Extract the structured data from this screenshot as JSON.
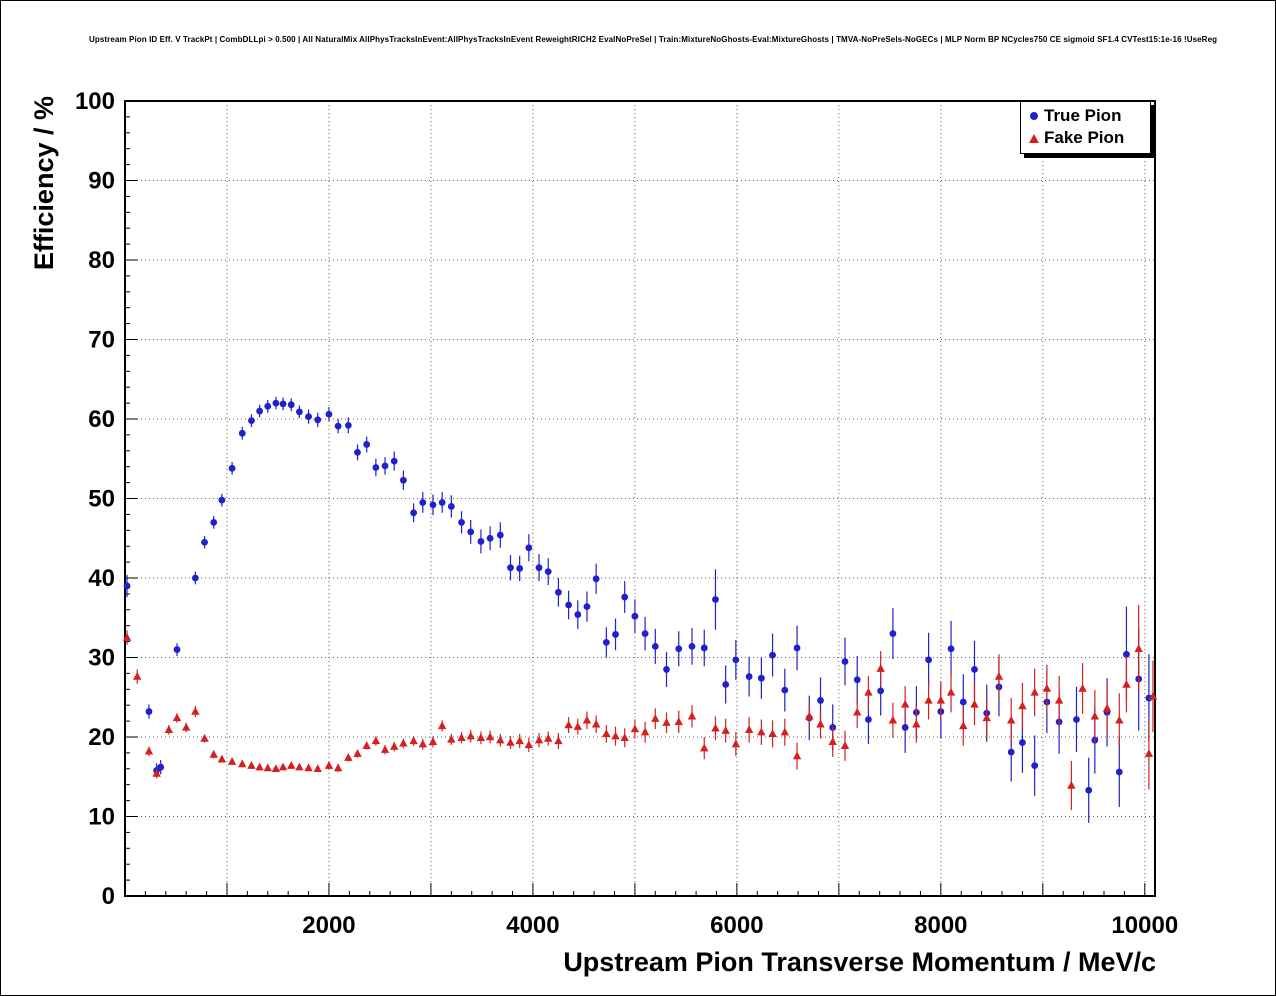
{
  "title": "Upstream Pion ID Eff. V TrackPt | CombDLLpi > 0.500 | All NaturalMix AllPhysTracksInEvent:AllPhysTracksInEvent ReweightRICH2 EvalNoPreSel | Train:MixtureNoGhosts-Eval:MixtureGhosts | TMVA-NoPreSels-NoGECs | MLP Norm BP NCycles750 CE sigmoid SF1.4 CVTest15:1e-16 !UseReg",
  "colors": {
    "true_pion": "#2020cc",
    "fake_pion": "#d42020",
    "grid": "#666666",
    "frame": "#000000"
  },
  "chart_data": {
    "type": "scatter",
    "title": "Upstream Pion ID Eff. V TrackPt | CombDLLpi > 0.500 | All NaturalMix AllPhysTracksInEvent:AllPhysTracksInEvent ReweightRICH2 EvalNoPreSel | Train:MixtureNoGhosts-Eval:MixtureGhosts | TMVA-NoPreSels-NoGECs | MLP Norm BP NCycles750 CE sigmoid SF1.4 CVTest15:1e-16 !UseReg",
    "xlabel": "Upstream Pion Transverse Momentum / MeV/c",
    "ylabel": "Efficiency / %",
    "xlim": [
      0,
      10100
    ],
    "ylim": [
      0,
      100
    ],
    "xticks": [
      2000,
      4000,
      6000,
      8000,
      10000
    ],
    "yticks": [
      0,
      10,
      20,
      30,
      40,
      50,
      60,
      70,
      80,
      90,
      100
    ],
    "grid": true,
    "grid_style": "dotted",
    "grid_x_step": 1000,
    "grid_y_step": 10,
    "legend_position": "top-right",
    "series": [
      {
        "name": "True Pion",
        "marker": "circle",
        "color": "#2020cc",
        "points": [
          [
            20,
            39.0,
            1.4
          ],
          [
            235,
            23.2,
            0.9
          ],
          [
            310,
            15.8,
            0.9
          ],
          [
            350,
            16.2,
            0.9
          ],
          [
            510,
            31.0,
            0.8
          ],
          [
            690,
            40.0,
            0.8
          ],
          [
            780,
            44.5,
            0.8
          ],
          [
            870,
            47.0,
            0.8
          ],
          [
            950,
            49.8,
            0.8
          ],
          [
            1050,
            53.8,
            0.8
          ],
          [
            1150,
            58.2,
            0.8
          ],
          [
            1240,
            59.8,
            0.8
          ],
          [
            1320,
            61.0,
            0.8
          ],
          [
            1400,
            61.6,
            0.8
          ],
          [
            1480,
            62.0,
            0.8
          ],
          [
            1550,
            61.9,
            0.8
          ],
          [
            1630,
            61.8,
            0.8
          ],
          [
            1710,
            60.9,
            0.8
          ],
          [
            1800,
            60.3,
            0.9
          ],
          [
            1890,
            59.9,
            0.9
          ],
          [
            2000,
            60.6,
            0.9
          ],
          [
            2090,
            59.1,
            0.9
          ],
          [
            2190,
            59.2,
            1.0
          ],
          [
            2280,
            55.8,
            1.0
          ],
          [
            2370,
            56.8,
            1.0
          ],
          [
            2460,
            53.9,
            1.1
          ],
          [
            2550,
            54.1,
            1.1
          ],
          [
            2640,
            54.7,
            1.2
          ],
          [
            2730,
            52.3,
            1.2
          ],
          [
            2830,
            48.2,
            1.2
          ],
          [
            2920,
            49.5,
            1.3
          ],
          [
            3020,
            49.2,
            1.3
          ],
          [
            3110,
            49.5,
            1.3
          ],
          [
            3200,
            49.0,
            1.4
          ],
          [
            3300,
            47.0,
            1.4
          ],
          [
            3390,
            45.8,
            1.5
          ],
          [
            3490,
            44.6,
            1.5
          ],
          [
            3580,
            45.0,
            1.5
          ],
          [
            3680,
            45.4,
            1.6
          ],
          [
            3780,
            41.3,
            1.6
          ],
          [
            3870,
            41.2,
            1.6
          ],
          [
            3960,
            43.8,
            1.7
          ],
          [
            4060,
            41.3,
            1.7
          ],
          [
            4150,
            40.8,
            1.7
          ],
          [
            4250,
            38.2,
            1.8
          ],
          [
            4350,
            36.6,
            1.8
          ],
          [
            4440,
            35.4,
            1.8
          ],
          [
            4530,
            36.4,
            1.9
          ],
          [
            4620,
            39.9,
            1.9
          ],
          [
            4720,
            31.9,
            1.9
          ],
          [
            4810,
            32.9,
            2.0
          ],
          [
            4900,
            37.6,
            2.0
          ],
          [
            5000,
            35.2,
            2.1
          ],
          [
            5100,
            33.0,
            2.1
          ],
          [
            5200,
            31.4,
            2.2
          ],
          [
            5310,
            28.5,
            2.2
          ],
          [
            5430,
            31.1,
            2.2
          ],
          [
            5560,
            31.4,
            2.3
          ],
          [
            5680,
            31.2,
            2.3
          ],
          [
            5790,
            37.3,
            3.8
          ],
          [
            5890,
            26.6,
            2.4
          ],
          [
            5990,
            29.7,
            2.5
          ],
          [
            6120,
            27.6,
            2.5
          ],
          [
            6240,
            27.4,
            2.6
          ],
          [
            6350,
            30.3,
            2.7
          ],
          [
            6470,
            25.9,
            2.7
          ],
          [
            6590,
            31.2,
            2.8
          ],
          [
            6710,
            22.4,
            2.8
          ],
          [
            6820,
            24.6,
            2.9
          ],
          [
            6940,
            21.2,
            2.9
          ],
          [
            7060,
            29.5,
            3.0
          ],
          [
            7180,
            27.2,
            3.0
          ],
          [
            7290,
            22.2,
            3.1
          ],
          [
            7410,
            25.8,
            3.1
          ],
          [
            7530,
            33.0,
            3.2
          ],
          [
            7650,
            21.2,
            3.2
          ],
          [
            7760,
            23.1,
            3.3
          ],
          [
            7880,
            29.7,
            3.4
          ],
          [
            8000,
            23.2,
            3.4
          ],
          [
            8100,
            31.1,
            3.5
          ],
          [
            8220,
            24.4,
            3.5
          ],
          [
            8330,
            28.5,
            3.6
          ],
          [
            8450,
            23.0,
            3.6
          ],
          [
            8570,
            26.3,
            3.7
          ],
          [
            8690,
            18.1,
            3.7
          ],
          [
            8800,
            19.3,
            3.8
          ],
          [
            8920,
            16.4,
            3.8
          ],
          [
            9040,
            24.4,
            3.9
          ],
          [
            9160,
            21.9,
            4.0
          ],
          [
            9330,
            22.2,
            4.1
          ],
          [
            9450,
            13.3,
            4.1
          ],
          [
            9510,
            19.6,
            4.2
          ],
          [
            9630,
            23.1,
            4.3
          ],
          [
            9750,
            15.6,
            4.4
          ],
          [
            9820,
            30.4,
            6.0
          ],
          [
            9940,
            27.3,
            6.5
          ],
          [
            10040,
            24.9,
            5.5
          ]
        ]
      },
      {
        "name": "Fake Pion",
        "marker": "triangle",
        "color": "#d42020",
        "points": [
          [
            20,
            32.5,
            0.9
          ],
          [
            120,
            27.6,
            0.9
          ],
          [
            235,
            18.2,
            0.6
          ],
          [
            310,
            15.4,
            0.6
          ],
          [
            430,
            20.9,
            0.6
          ],
          [
            510,
            22.4,
            0.6
          ],
          [
            600,
            21.2,
            0.6
          ],
          [
            690,
            23.2,
            0.7
          ],
          [
            780,
            19.8,
            0.5
          ],
          [
            870,
            17.8,
            0.5
          ],
          [
            950,
            17.2,
            0.4
          ],
          [
            1050,
            16.9,
            0.4
          ],
          [
            1150,
            16.6,
            0.4
          ],
          [
            1240,
            16.4,
            0.4
          ],
          [
            1320,
            16.2,
            0.4
          ],
          [
            1400,
            16.1,
            0.4
          ],
          [
            1480,
            16.0,
            0.4
          ],
          [
            1550,
            16.2,
            0.4
          ],
          [
            1630,
            16.4,
            0.4
          ],
          [
            1710,
            16.2,
            0.4
          ],
          [
            1800,
            16.1,
            0.4
          ],
          [
            1890,
            16.0,
            0.4
          ],
          [
            2000,
            16.4,
            0.5
          ],
          [
            2090,
            16.1,
            0.5
          ],
          [
            2190,
            17.4,
            0.5
          ],
          [
            2280,
            17.9,
            0.5
          ],
          [
            2370,
            18.9,
            0.5
          ],
          [
            2460,
            19.5,
            0.6
          ],
          [
            2550,
            18.4,
            0.6
          ],
          [
            2640,
            18.8,
            0.6
          ],
          [
            2730,
            19.2,
            0.6
          ],
          [
            2830,
            19.5,
            0.6
          ],
          [
            2920,
            19.1,
            0.7
          ],
          [
            3020,
            19.4,
            0.7
          ],
          [
            3110,
            21.4,
            0.7
          ],
          [
            3200,
            19.7,
            0.7
          ],
          [
            3300,
            19.9,
            0.7
          ],
          [
            3390,
            20.1,
            0.8
          ],
          [
            3490,
            19.9,
            0.8
          ],
          [
            3580,
            20.0,
            0.8
          ],
          [
            3680,
            19.6,
            0.8
          ],
          [
            3780,
            19.3,
            0.8
          ],
          [
            3870,
            19.5,
            0.9
          ],
          [
            3960,
            19.0,
            0.9
          ],
          [
            4060,
            19.6,
            0.9
          ],
          [
            4150,
            19.8,
            0.9
          ],
          [
            4250,
            19.5,
            1.0
          ],
          [
            4350,
            21.5,
            1.0
          ],
          [
            4440,
            21.3,
            1.0
          ],
          [
            4530,
            22.1,
            1.1
          ],
          [
            4620,
            21.6,
            1.1
          ],
          [
            4720,
            20.4,
            1.1
          ],
          [
            4810,
            20.1,
            1.2
          ],
          [
            4900,
            19.9,
            1.2
          ],
          [
            5000,
            21.0,
            1.2
          ],
          [
            5100,
            20.6,
            1.3
          ],
          [
            5200,
            22.3,
            1.3
          ],
          [
            5310,
            21.8,
            1.3
          ],
          [
            5430,
            21.9,
            1.4
          ],
          [
            5560,
            22.6,
            1.4
          ],
          [
            5680,
            18.6,
            1.4
          ],
          [
            5790,
            21.1,
            1.5
          ],
          [
            5890,
            20.8,
            1.5
          ],
          [
            5990,
            19.1,
            1.5
          ],
          [
            6120,
            20.9,
            1.6
          ],
          [
            6240,
            20.6,
            1.6
          ],
          [
            6350,
            20.4,
            1.7
          ],
          [
            6470,
            20.6,
            1.7
          ],
          [
            6590,
            17.6,
            1.7
          ],
          [
            6710,
            22.6,
            1.8
          ],
          [
            6820,
            21.6,
            1.8
          ],
          [
            6940,
            19.4,
            1.9
          ],
          [
            7060,
            18.9,
            1.9
          ],
          [
            7180,
            23.1,
            2.0
          ],
          [
            7290,
            25.6,
            2.1
          ],
          [
            7410,
            28.6,
            2.2
          ],
          [
            7530,
            22.1,
            2.2
          ],
          [
            7650,
            24.1,
            2.3
          ],
          [
            7760,
            21.6,
            2.3
          ],
          [
            7880,
            24.6,
            2.4
          ],
          [
            8000,
            24.6,
            2.4
          ],
          [
            8100,
            25.6,
            2.5
          ],
          [
            8220,
            21.4,
            2.5
          ],
          [
            8330,
            24.1,
            2.6
          ],
          [
            8450,
            22.4,
            2.6
          ],
          [
            8570,
            27.6,
            2.8
          ],
          [
            8690,
            22.1,
            2.8
          ],
          [
            8800,
            23.9,
            2.9
          ],
          [
            8920,
            25.6,
            3.0
          ],
          [
            9040,
            26.1,
            3.0
          ],
          [
            9160,
            24.6,
            3.1
          ],
          [
            9280,
            13.9,
            3.1
          ],
          [
            9390,
            26.1,
            3.2
          ],
          [
            9510,
            22.6,
            3.3
          ],
          [
            9630,
            23.6,
            3.4
          ],
          [
            9750,
            22.1,
            3.4
          ],
          [
            9820,
            26.6,
            3.5
          ],
          [
            9940,
            31.1,
            5.5
          ],
          [
            10040,
            17.9,
            4.5
          ],
          [
            10080,
            25.1,
            4.5
          ]
        ]
      }
    ]
  }
}
